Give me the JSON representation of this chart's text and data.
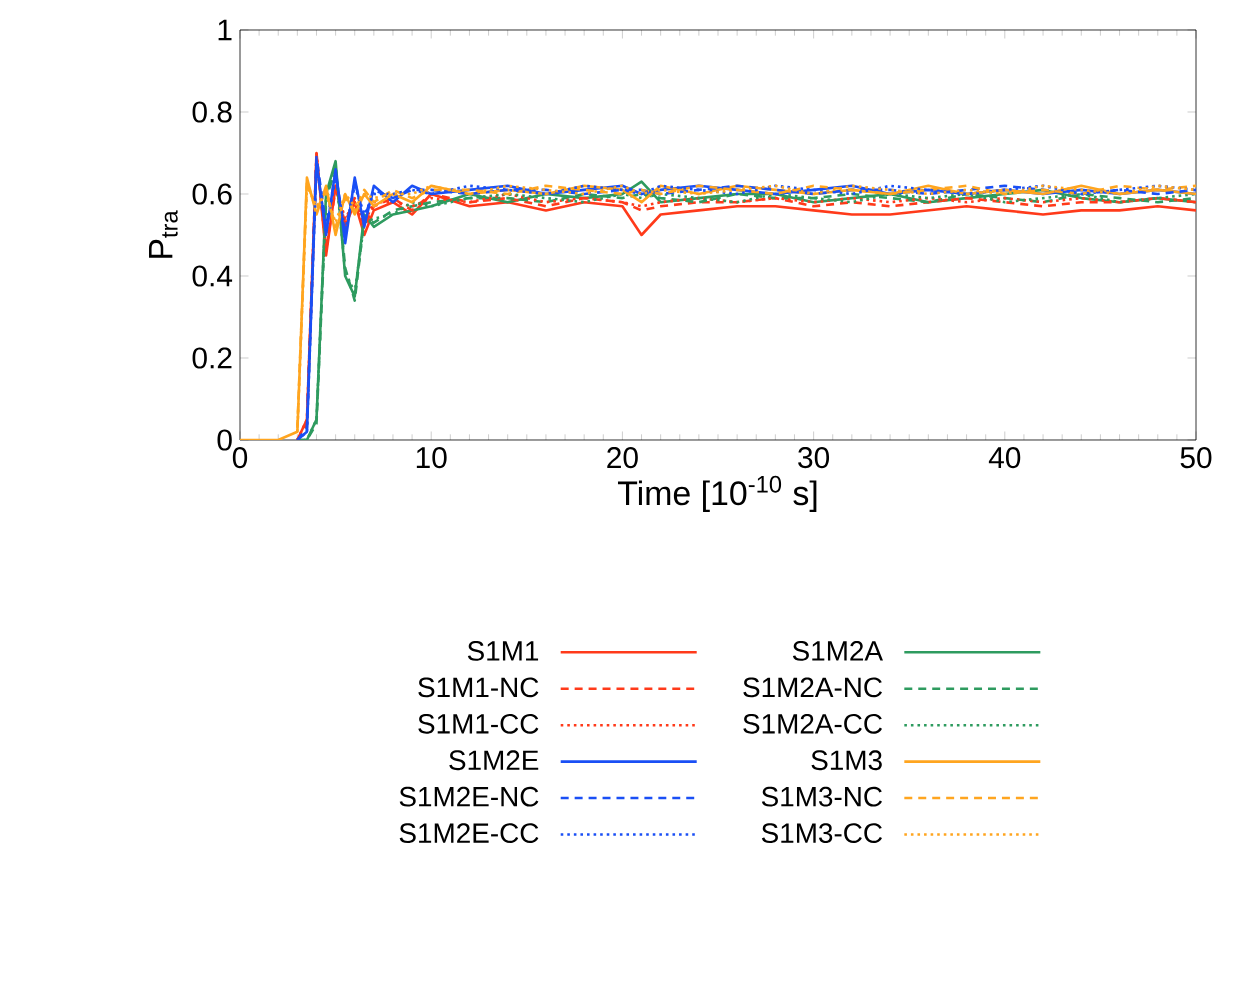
{
  "chart_data": {
    "type": "line",
    "xlabel": "Time [10$^{-10}$ s]",
    "ylabel": "P$_{tra}$",
    "x": [
      0,
      1,
      2,
      3,
      3.5,
      4,
      4.5,
      5,
      5.5,
      6,
      6.5,
      7,
      8,
      9,
      10,
      12,
      14,
      16,
      18,
      20,
      21,
      22,
      24,
      26,
      28,
      30,
      32,
      34,
      36,
      38,
      40,
      42,
      44,
      46,
      48,
      50
    ],
    "xlim": [
      0,
      50
    ],
    "xticks": [
      0,
      10,
      20,
      30,
      40,
      50
    ],
    "ylim": [
      0,
      1
    ],
    "yticks": [
      0,
      0.2,
      0.4,
      0.6,
      0.8,
      1
    ],
    "legend": "bottom",
    "grid": false,
    "series": [
      {
        "name": "S1M1",
        "color": "#ff3a1a",
        "line_style": "solid",
        "values": [
          null,
          null,
          null,
          0,
          0.05,
          0.7,
          0.45,
          0.62,
          0.52,
          0.58,
          0.5,
          0.56,
          0.58,
          0.55,
          0.6,
          0.57,
          0.58,
          0.56,
          0.58,
          0.57,
          0.5,
          0.55,
          0.56,
          0.57,
          0.57,
          0.56,
          0.55,
          0.55,
          0.56,
          0.57,
          0.56,
          0.55,
          0.56,
          0.56,
          0.57,
          0.56
        ]
      },
      {
        "name": "S1M1-NC",
        "color": "#ff3a1a",
        "line_style": "dashed",
        "values": [
          null,
          null,
          null,
          0,
          0.04,
          0.69,
          0.47,
          0.61,
          0.53,
          0.59,
          0.52,
          0.57,
          0.59,
          0.56,
          0.6,
          0.58,
          0.59,
          0.57,
          0.59,
          0.58,
          0.56,
          0.57,
          0.58,
          0.58,
          0.59,
          0.57,
          0.58,
          0.57,
          0.58,
          0.59,
          0.58,
          0.57,
          0.58,
          0.58,
          0.59,
          0.58
        ]
      },
      {
        "name": "S1M1-CC",
        "color": "#ff3a1a",
        "line_style": "dotted",
        "values": [
          null,
          null,
          null,
          0,
          0.05,
          0.7,
          0.46,
          0.62,
          0.54,
          0.58,
          0.53,
          0.58,
          0.58,
          0.57,
          0.59,
          0.58,
          0.6,
          0.58,
          0.59,
          0.58,
          0.57,
          0.58,
          0.59,
          0.58,
          0.59,
          0.58,
          0.59,
          0.58,
          0.59,
          0.58,
          0.59,
          0.58,
          0.59,
          0.58,
          0.59,
          0.58
        ]
      },
      {
        "name": "S1M2E",
        "color": "#1a4ff5",
        "line_style": "solid",
        "values": [
          null,
          null,
          null,
          0,
          0.02,
          0.68,
          0.5,
          0.66,
          0.48,
          0.64,
          0.52,
          0.62,
          0.58,
          0.62,
          0.6,
          0.61,
          0.62,
          0.6,
          0.61,
          0.62,
          0.6,
          0.61,
          0.62,
          0.61,
          0.6,
          0.61,
          0.62,
          0.6,
          0.61,
          0.6,
          0.61,
          0.6,
          0.61,
          0.6,
          0.61,
          0.6
        ]
      },
      {
        "name": "S1M2E-NC",
        "color": "#1a4ff5",
        "line_style": "dashed",
        "values": [
          null,
          null,
          null,
          0,
          0.03,
          0.69,
          0.52,
          0.65,
          0.5,
          0.63,
          0.54,
          0.61,
          0.59,
          0.61,
          0.61,
          0.6,
          0.61,
          0.61,
          0.6,
          0.61,
          0.61,
          0.6,
          0.61,
          0.62,
          0.61,
          0.6,
          0.61,
          0.61,
          0.6,
          0.61,
          0.62,
          0.61,
          0.6,
          0.61,
          0.6,
          0.61
        ]
      },
      {
        "name": "S1M2E-CC",
        "color": "#1a4ff5",
        "line_style": "dotted",
        "values": [
          null,
          null,
          null,
          0,
          0.02,
          0.67,
          0.51,
          0.64,
          0.51,
          0.62,
          0.55,
          0.6,
          0.6,
          0.61,
          0.6,
          0.62,
          0.61,
          0.6,
          0.62,
          0.61,
          0.6,
          0.62,
          0.61,
          0.6,
          0.62,
          0.61,
          0.6,
          0.62,
          0.61,
          0.6,
          0.61,
          0.62,
          0.6,
          0.61,
          0.62,
          0.61
        ]
      },
      {
        "name": "S1M2A",
        "color": "#2e9b5f",
        "line_style": "solid",
        "values": [
          null,
          null,
          null,
          0,
          0,
          0.05,
          0.6,
          0.68,
          0.4,
          0.35,
          0.55,
          0.52,
          0.55,
          0.56,
          0.57,
          0.6,
          0.58,
          0.6,
          0.59,
          0.6,
          0.63,
          0.58,
          0.59,
          0.6,
          0.6,
          0.58,
          0.59,
          0.6,
          0.58,
          0.59,
          0.6,
          0.61,
          0.59,
          0.58,
          0.59,
          0.58
        ]
      },
      {
        "name": "S1M2A-NC",
        "color": "#2e9b5f",
        "line_style": "dashed",
        "values": [
          null,
          null,
          null,
          0,
          0,
          0.04,
          0.58,
          0.67,
          0.42,
          0.34,
          0.54,
          0.53,
          0.56,
          0.57,
          0.58,
          0.59,
          0.59,
          0.58,
          0.6,
          0.59,
          0.6,
          0.59,
          0.58,
          0.6,
          0.59,
          0.59,
          0.6,
          0.59,
          0.58,
          0.6,
          0.59,
          0.58,
          0.6,
          0.59,
          0.58,
          0.59
        ]
      },
      {
        "name": "S1M2A-CC",
        "color": "#2e9b5f",
        "line_style": "dotted",
        "values": [
          null,
          null,
          null,
          0,
          0,
          0.05,
          0.59,
          0.66,
          0.41,
          0.36,
          0.53,
          0.54,
          0.55,
          0.58,
          0.57,
          0.59,
          0.6,
          0.59,
          0.58,
          0.6,
          0.59,
          0.6,
          0.59,
          0.58,
          0.6,
          0.59,
          0.58,
          0.6,
          0.59,
          0.6,
          0.58,
          0.59,
          0.6,
          0.58,
          0.59,
          0.6
        ]
      },
      {
        "name": "S1M3",
        "color": "#ffa51f",
        "line_style": "solid",
        "values": [
          0,
          0,
          0,
          0.02,
          0.64,
          0.55,
          0.62,
          0.5,
          0.6,
          0.55,
          0.6,
          0.57,
          0.6,
          0.58,
          0.62,
          0.6,
          0.61,
          0.6,
          0.62,
          0.61,
          0.58,
          0.62,
          0.6,
          0.62,
          0.61,
          0.6,
          0.61,
          0.6,
          0.62,
          0.6,
          0.61,
          0.6,
          0.62,
          0.6,
          0.61,
          0.6
        ]
      },
      {
        "name": "S1M3-NC",
        "color": "#ffa51f",
        "line_style": "dashed",
        "values": [
          null,
          null,
          null,
          0.03,
          0.63,
          0.56,
          0.61,
          0.52,
          0.59,
          0.56,
          0.61,
          0.58,
          0.61,
          0.59,
          0.61,
          0.61,
          0.6,
          0.62,
          0.61,
          0.6,
          0.61,
          0.6,
          0.62,
          0.61,
          0.6,
          0.62,
          0.61,
          0.6,
          0.61,
          0.62,
          0.6,
          0.61,
          0.6,
          0.62,
          0.61,
          0.62
        ]
      },
      {
        "name": "S1M3-CC",
        "color": "#ffa51f",
        "line_style": "dotted",
        "values": [
          null,
          null,
          null,
          0.02,
          0.62,
          0.57,
          0.6,
          0.53,
          0.6,
          0.57,
          0.6,
          0.59,
          0.6,
          0.6,
          0.62,
          0.6,
          0.62,
          0.61,
          0.6,
          0.62,
          0.6,
          0.61,
          0.6,
          0.61,
          0.62,
          0.6,
          0.62,
          0.61,
          0.6,
          0.61,
          0.6,
          0.62,
          0.61,
          0.6,
          0.62,
          0.61
        ]
      }
    ]
  }
}
